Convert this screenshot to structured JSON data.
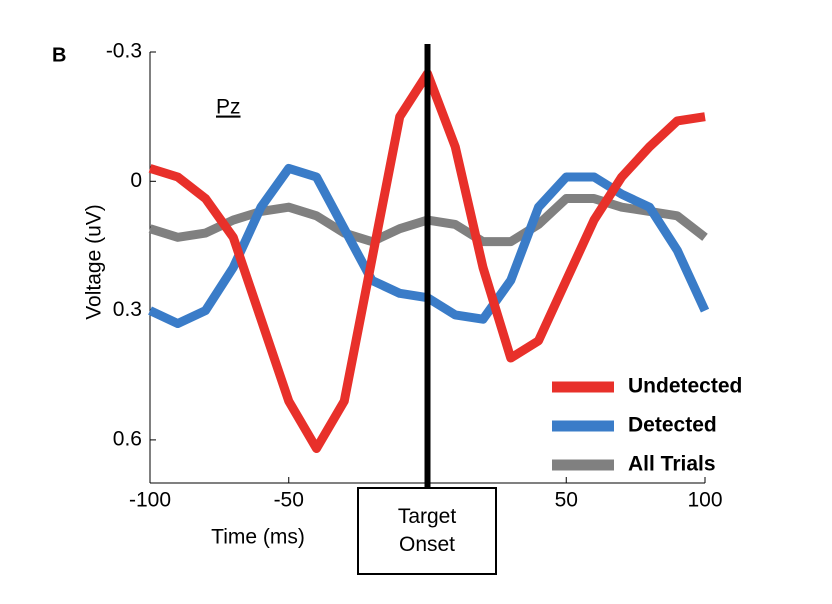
{
  "chart_data": {
    "type": "line",
    "panel_label": "B",
    "annotation": "Pz",
    "x_label": "Time (ms)",
    "y_label": "Voltage (uV)",
    "x": [
      -100,
      -90,
      -80,
      -70,
      -60,
      -50,
      -40,
      -30,
      -20,
      -10,
      0,
      10,
      20,
      30,
      40,
      50,
      60,
      70,
      80,
      90,
      100
    ],
    "series": [
      {
        "name": "Undetected",
        "color": "#e8302a",
        "values": [
          -0.03,
          -0.01,
          0.04,
          0.13,
          0.32,
          0.51,
          0.62,
          0.51,
          0.18,
          -0.15,
          -0.25,
          -0.08,
          0.2,
          0.41,
          0.37,
          0.23,
          0.09,
          -0.01,
          -0.08,
          -0.14,
          -0.15
        ]
      },
      {
        "name": "Detected",
        "color": "#3a7cc8",
        "values": [
          0.3,
          0.33,
          0.3,
          0.2,
          0.06,
          -0.03,
          -0.01,
          0.11,
          0.23,
          0.26,
          0.27,
          0.31,
          0.32,
          0.23,
          0.06,
          -0.01,
          -0.01,
          0.03,
          0.06,
          0.16,
          0.3
        ]
      },
      {
        "name": "All Trials",
        "color": "#808080",
        "values": [
          0.11,
          0.13,
          0.12,
          0.09,
          0.07,
          0.06,
          0.08,
          0.12,
          0.14,
          0.11,
          0.09,
          0.1,
          0.14,
          0.14,
          0.1,
          0.04,
          0.04,
          0.06,
          0.07,
          0.08,
          0.13
        ]
      }
    ],
    "xlim": [
      -100,
      100
    ],
    "xticks": [
      -100,
      -50,
      50,
      100
    ],
    "ylim": [
      -0.3,
      0.7
    ],
    "yticks": [
      -0.3,
      0,
      0.3,
      0.6
    ],
    "y_inverted": true,
    "onset": {
      "x": 0,
      "label": "Target Onset"
    },
    "legend": "lower right"
  }
}
